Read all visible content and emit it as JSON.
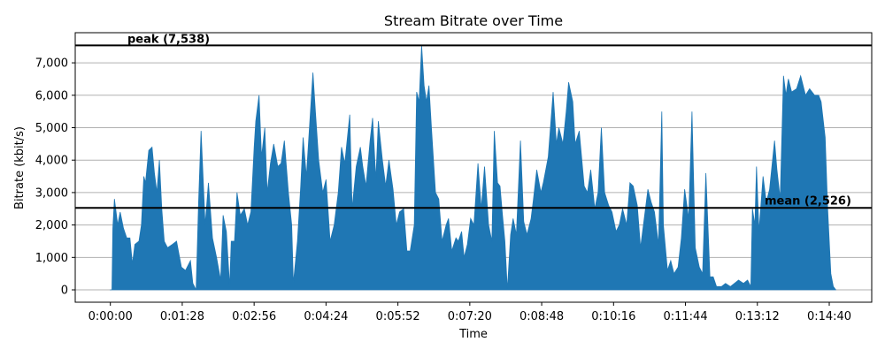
{
  "chart_data": {
    "type": "area",
    "title": "Stream Bitrate over Time",
    "xlabel": "Time",
    "ylabel": "Bitrate (kbit/s)",
    "xlim": [
      -43,
      932
    ],
    "ylim": [
      -381,
      7929
    ],
    "x_unit": "seconds",
    "xticks": [
      0,
      88,
      176,
      264,
      352,
      440,
      528,
      616,
      704,
      792,
      880
    ],
    "xtick_labels": [
      "0:00:00",
      "0:01:28",
      "0:02:56",
      "0:04:24",
      "0:05:52",
      "0:07:20",
      "0:08:48",
      "0:10:16",
      "0:11:44",
      "0:13:12",
      "0:14:40"
    ],
    "yticks": [
      0,
      1000,
      2000,
      3000,
      4000,
      5000,
      6000,
      7000
    ],
    "ytick_labels": [
      "0",
      "1,000",
      "2,000",
      "3,000",
      "4,000",
      "5,000",
      "6,000",
      "7,000"
    ],
    "grid": "y",
    "fill_color": "#1f77b4",
    "peak": {
      "value": 7538,
      "label": "peak (7,538)"
    },
    "mean": {
      "value": 2526,
      "label": "mean (2,526)"
    },
    "series": {
      "name": "Bitrate",
      "t": [
        0,
        2,
        3,
        5,
        9,
        12,
        16,
        20,
        24,
        27,
        30,
        35,
        38,
        41,
        43,
        47,
        51,
        54,
        57,
        60,
        63,
        66,
        70,
        76,
        81,
        87,
        92,
        98,
        101,
        105,
        108,
        111,
        116,
        120,
        125,
        130,
        135,
        138,
        142,
        146,
        148,
        152,
        155,
        159,
        164,
        168,
        172,
        176,
        178,
        182,
        185,
        189,
        192,
        196,
        200,
        205,
        209,
        213,
        218,
        222,
        224,
        229,
        233,
        236,
        240,
        244,
        248,
        251,
        255,
        260,
        264,
        269,
        274,
        279,
        283,
        287,
        293,
        296,
        301,
        306,
        309,
        313,
        318,
        321,
        325,
        328,
        333,
        337,
        341,
        346,
        350,
        354,
        359,
        363,
        367,
        372,
        375,
        378,
        381,
        384,
        387,
        390,
        393,
        398,
        402,
        406,
        411,
        414,
        418,
        423,
        426,
        430,
        433,
        437,
        441,
        445,
        450,
        454,
        458,
        463,
        467,
        470,
        474,
        477,
        480,
        483,
        486,
        490,
        493,
        497,
        502,
        506,
        510,
        515,
        518,
        522,
        527,
        530,
        536,
        542,
        546,
        549,
        554,
        558,
        561,
        566,
        569,
        574,
        580,
        584,
        588,
        593,
        597,
        601,
        605,
        610,
        614,
        619,
        623,
        627,
        632,
        636,
        640,
        645,
        649,
        653,
        658,
        662,
        666,
        671,
        675,
        677,
        682,
        686,
        690,
        695,
        699,
        703,
        708,
        712,
        716,
        721,
        725,
        729,
        734,
        738,
        742,
        748,
        753,
        759,
        764,
        769,
        775,
        780,
        784,
        786,
        789,
        791,
        794,
        799,
        803,
        807,
        813,
        816,
        820,
        824,
        827,
        830,
        834,
        840,
        845,
        851,
        856,
        862,
        867,
        870,
        875,
        878,
        882,
        885,
        888
      ],
      "v": [
        0,
        0,
        1900,
        2800,
        2000,
        2400,
        1900,
        1600,
        1600,
        800,
        1400,
        1500,
        2000,
        3500,
        3300,
        4300,
        4400,
        3600,
        3000,
        4000,
        2500,
        1500,
        1300,
        1400,
        1500,
        700,
        600,
        900,
        200,
        0,
        2700,
        4900,
        2000,
        3300,
        1600,
        1000,
        300,
        2300,
        1800,
        100,
        1500,
        1500,
        3000,
        2300,
        2500,
        2000,
        2400,
        4400,
        5200,
        6000,
        4100,
        5000,
        3000,
        3900,
        4500,
        3800,
        3900,
        4600,
        3000,
        2000,
        200,
        1500,
        3200,
        4700,
        3500,
        5100,
        6700,
        5500,
        4000,
        3000,
        3400,
        1500,
        2000,
        3000,
        4400,
        3900,
        5400,
        2500,
        3800,
        4400,
        3800,
        3200,
        4600,
        5300,
        3400,
        5200,
        4000,
        3200,
        4000,
        3100,
        2000,
        2400,
        2500,
        1200,
        1200,
        2000,
        6100,
        5800,
        7538,
        6300,
        5800,
        6300,
        5000,
        3000,
        2800,
        1500,
        2000,
        2200,
        1200,
        1600,
        1500,
        1800,
        1000,
        1400,
        2200,
        2000,
        3900,
        2500,
        3800,
        2000,
        1500,
        4900,
        3300,
        3200,
        2300,
        1500,
        0,
        1700,
        2200,
        1700,
        4600,
        2100,
        1700,
        2200,
        2800,
        3700,
        3000,
        3300,
        4100,
        6100,
        4500,
        5000,
        4500,
        5500,
        6400,
        5800,
        4500,
        4900,
        3200,
        3000,
        3700,
        2500,
        3000,
        5000,
        3000,
        2600,
        2400,
        1800,
        2000,
        2500,
        2000,
        3300,
        3200,
        2600,
        1300,
        2100,
        3100,
        2700,
        2400,
        1400,
        5500,
        2000,
        600,
        900,
        500,
        700,
        1600,
        3100,
        2200,
        5500,
        1300,
        700,
        500,
        3600,
        400,
        400,
        100,
        100,
        200,
        100,
        200,
        300,
        200,
        300,
        100,
        2500,
        2000,
        3800,
        1800,
        3500,
        2700,
        3100,
        4600,
        3700,
        2800,
        6600,
        6000,
        6500,
        6100,
        6200,
        6600,
        6000,
        6200,
        6000,
        6000,
        5800,
        4700,
        2500,
        500,
        100,
        0
      ]
    }
  }
}
